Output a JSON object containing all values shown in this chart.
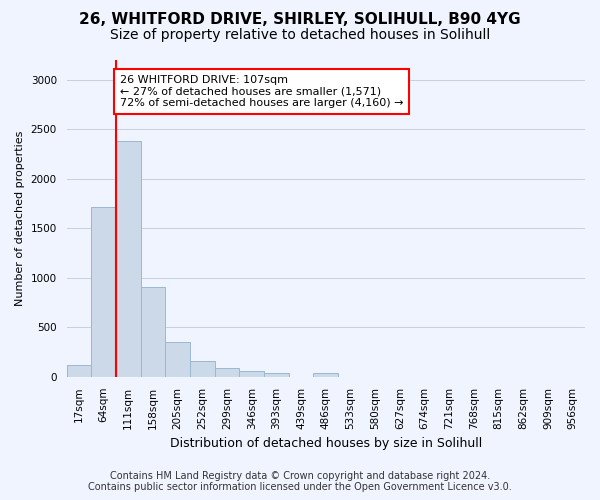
{
  "title1": "26, WHITFORD DRIVE, SHIRLEY, SOLIHULL, B90 4YG",
  "title2": "Size of property relative to detached houses in Solihull",
  "xlabel": "Distribution of detached houses by size in Solihull",
  "ylabel": "Number of detached properties",
  "bar_color": "#ccd9e8",
  "bar_edge_color": "#99b8d4",
  "bins": [
    "17sqm",
    "64sqm",
    "111sqm",
    "158sqm",
    "205sqm",
    "252sqm",
    "299sqm",
    "346sqm",
    "393sqm",
    "439sqm",
    "486sqm",
    "533sqm",
    "580sqm",
    "627sqm",
    "674sqm",
    "721sqm",
    "768sqm",
    "815sqm",
    "862sqm",
    "909sqm",
    "956sqm"
  ],
  "values": [
    120,
    1720,
    2380,
    910,
    350,
    155,
    85,
    55,
    35,
    0,
    35,
    0,
    0,
    0,
    0,
    0,
    0,
    0,
    0,
    0,
    0
  ],
  "red_line_bin_index": 2,
  "annotation_text": "26 WHITFORD DRIVE: 107sqm\n← 27% of detached houses are smaller (1,571)\n72% of semi-detached houses are larger (4,160) →",
  "annotation_box_color": "white",
  "annotation_box_edge_color": "red",
  "red_line_color": "red",
  "ylim": [
    0,
    3200
  ],
  "yticks": [
    0,
    500,
    1000,
    1500,
    2000,
    2500,
    3000
  ],
  "footer1": "Contains HM Land Registry data © Crown copyright and database right 2024.",
  "footer2": "Contains public sector information licensed under the Open Government Licence v3.0.",
  "bg_color": "#f0f4ff",
  "grid_color": "#c8cfe0",
  "title1_fontsize": 11,
  "title2_fontsize": 10,
  "xlabel_fontsize": 9,
  "ylabel_fontsize": 8,
  "tick_fontsize": 7.5,
  "footer_fontsize": 7
}
